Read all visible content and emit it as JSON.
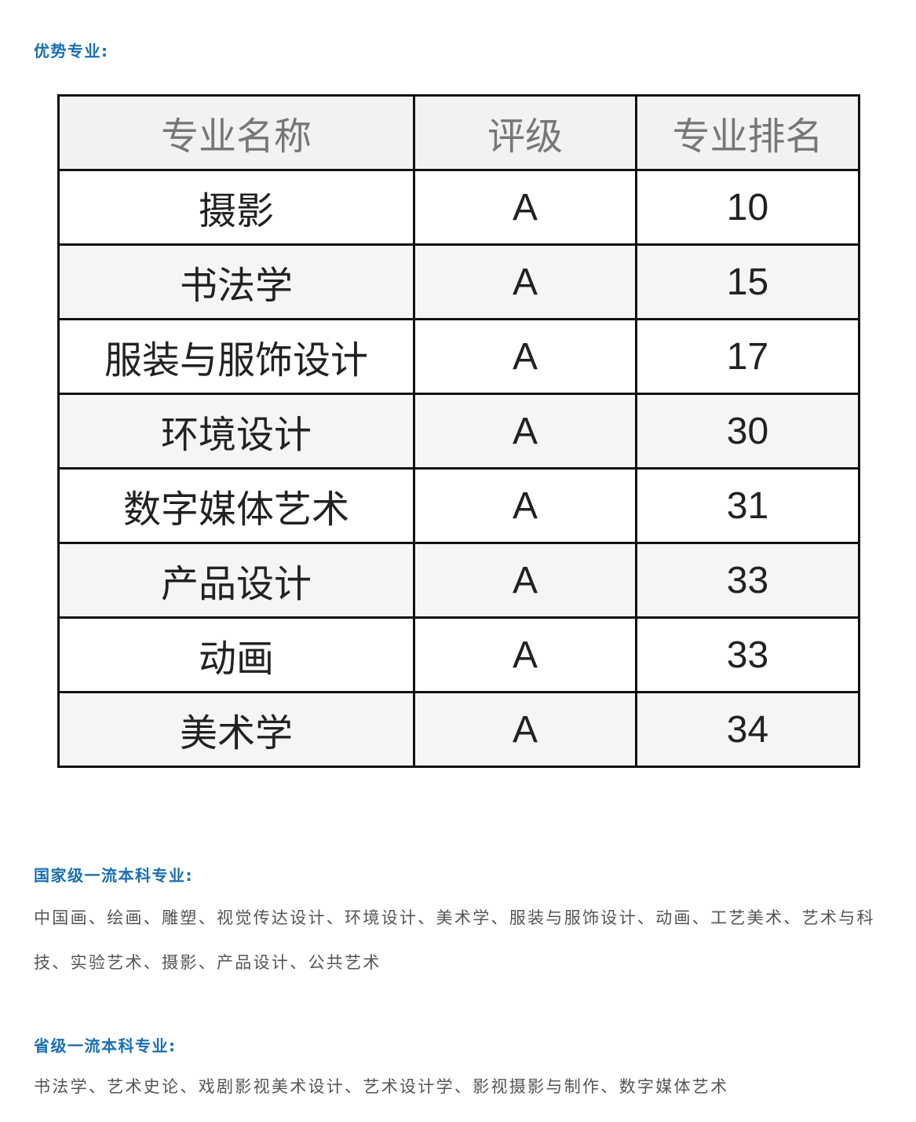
{
  "advantage_heading": "优势专业:",
  "table": {
    "headers": [
      "专业名称",
      "评级",
      "专业排名"
    ],
    "rows": [
      [
        "摄影",
        "A",
        "10"
      ],
      [
        "书法学",
        "A",
        "15"
      ],
      [
        "服装与服饰设计",
        "A",
        "17"
      ],
      [
        "环境设计",
        "A",
        "30"
      ],
      [
        "数字媒体艺术",
        "A",
        "31"
      ],
      [
        "产品设计",
        "A",
        "33"
      ],
      [
        "动画",
        "A",
        "33"
      ],
      [
        "美术学",
        "A",
        "34"
      ]
    ]
  },
  "national": {
    "heading": "国家级一流本科专业:",
    "text": "中国画、绘画、雕塑、视觉传达设计、环境设计、美术学、服装与服饰设计、动画、工艺美术、艺术与科技、实验艺术、摄影、产品设计、公共艺术"
  },
  "provincial": {
    "heading": "省级一流本科专业:",
    "text": "书法学、艺术史论、戏剧影视美术设计、艺术设计学、影视摄影与制作、数字媒体艺术"
  },
  "colors": {
    "heading": "#1a6fb5",
    "text": "#555555"
  }
}
